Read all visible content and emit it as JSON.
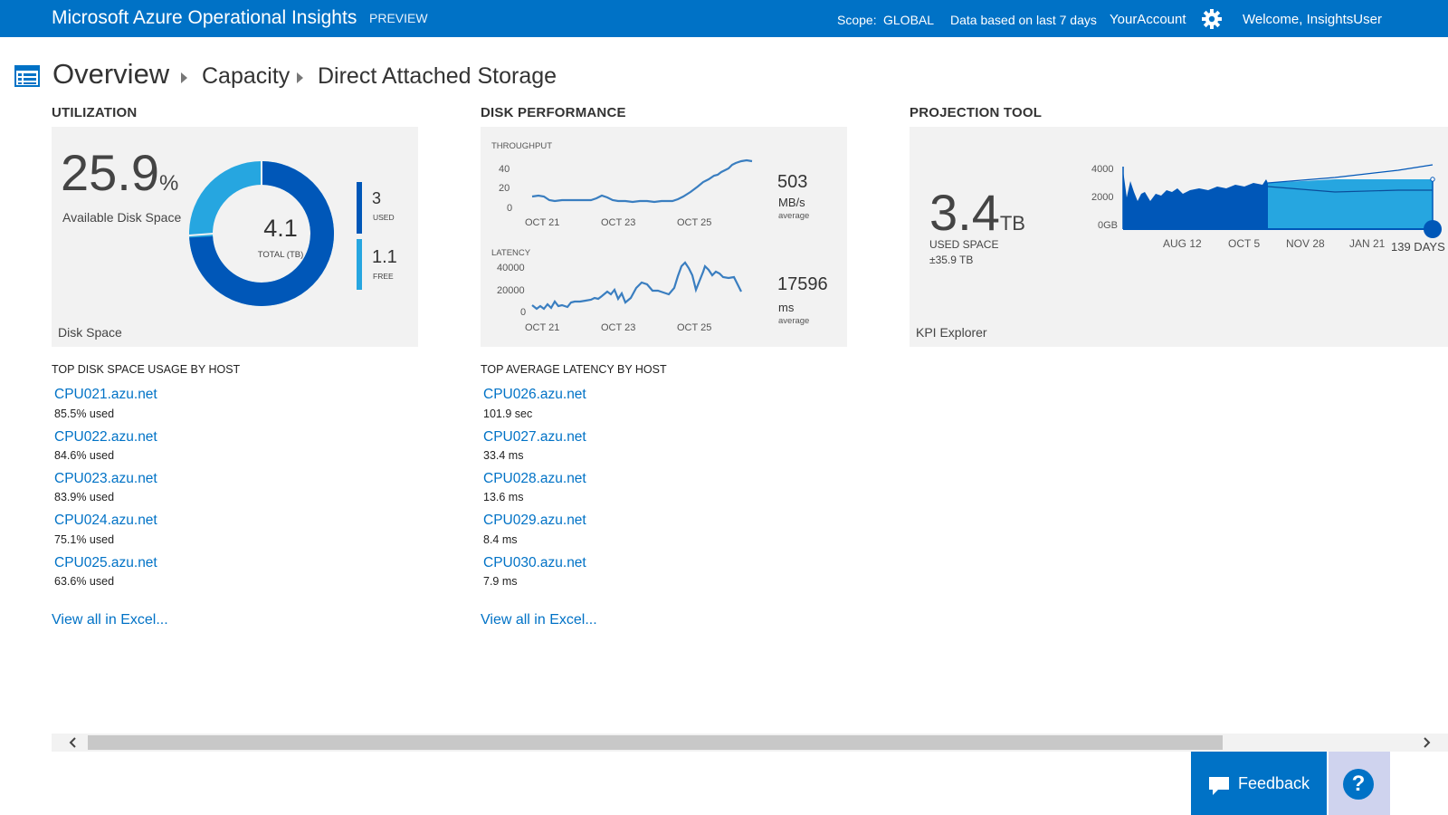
{
  "header": {
    "app_title": "Microsoft Azure Operational Insights",
    "preview": "PREVIEW",
    "scope_label": "Scope:",
    "scope_value": "GLOBAL",
    "period": "Data based on last 7 days",
    "account": "YourAccount",
    "welcome": "Welcome, InsightsUser"
  },
  "breadcrumb": [
    "Overview",
    "Capacity",
    "Direct Attached Storage"
  ],
  "utilization": {
    "title": "UTILIZATION",
    "available_pct_value": "25.9",
    "available_pct_unit": "%",
    "available_label": "Available Disk Space",
    "total_value": "4.1",
    "total_label": "TOTAL (TB)",
    "used_value": "3",
    "used_label": "USED",
    "free_value": "1.1",
    "free_label": "FREE",
    "footer": "Disk Space",
    "colors": {
      "used": "#0057b8",
      "free": "#26a6e0"
    }
  },
  "disk_performance": {
    "title": "DISK PERFORMANCE",
    "throughput": {
      "label": "THROUGHPUT",
      "ticks": [
        "40",
        "20",
        "0"
      ],
      "xticks": [
        "OCT 21",
        "OCT 23",
        "OCT 25"
      ],
      "value": "503",
      "unit": "MB/s",
      "avg": "average"
    },
    "latency": {
      "label": "LATENCY",
      "ticks": [
        "40000",
        "20000",
        "0"
      ],
      "xticks": [
        "OCT 21",
        "OCT 23",
        "OCT 25"
      ],
      "value": "17596",
      "unit": "ms",
      "avg": "average"
    }
  },
  "projection": {
    "title": "PROJECTION TOOL",
    "value": "3.4",
    "unit": "TB",
    "used_label": "USED SPACE",
    "error": "±35.9 TB",
    "ticks": [
      "4000",
      "2000",
      "0GB"
    ],
    "xticks": [
      "AUG 12",
      "OCT 5",
      "NOV 28",
      "JAN 21"
    ],
    "days": "139 DAYS",
    "footer": "KPI Explorer"
  },
  "top_disk_usage": {
    "title": "TOP DISK SPACE USAGE BY HOST",
    "items": [
      {
        "host": "CPU021.azu.net",
        "detail": "85.5% used"
      },
      {
        "host": "CPU022.azu.net",
        "detail": "84.6% used"
      },
      {
        "host": "CPU023.azu.net",
        "detail": "83.9% used"
      },
      {
        "host": "CPU024.azu.net",
        "detail": "75.1% used"
      },
      {
        "host": "CPU025.azu.net",
        "detail": "63.6% used"
      }
    ],
    "view_all": "View all in Excel..."
  },
  "top_latency": {
    "title": "TOP AVERAGE LATENCY BY HOST",
    "items": [
      {
        "host": "CPU026.azu.net",
        "detail": "101.9 sec"
      },
      {
        "host": "CPU027.azu.net",
        "detail": "33.4 ms"
      },
      {
        "host": "CPU028.azu.net",
        "detail": "13.6 ms"
      },
      {
        "host": "CPU029.azu.net",
        "detail": "8.4 ms"
      },
      {
        "host": "CPU030.azu.net",
        "detail": "7.9 ms"
      }
    ],
    "view_all": "View all in Excel..."
  },
  "feedback": {
    "label": "Feedback"
  },
  "help": {
    "label": "?"
  }
}
